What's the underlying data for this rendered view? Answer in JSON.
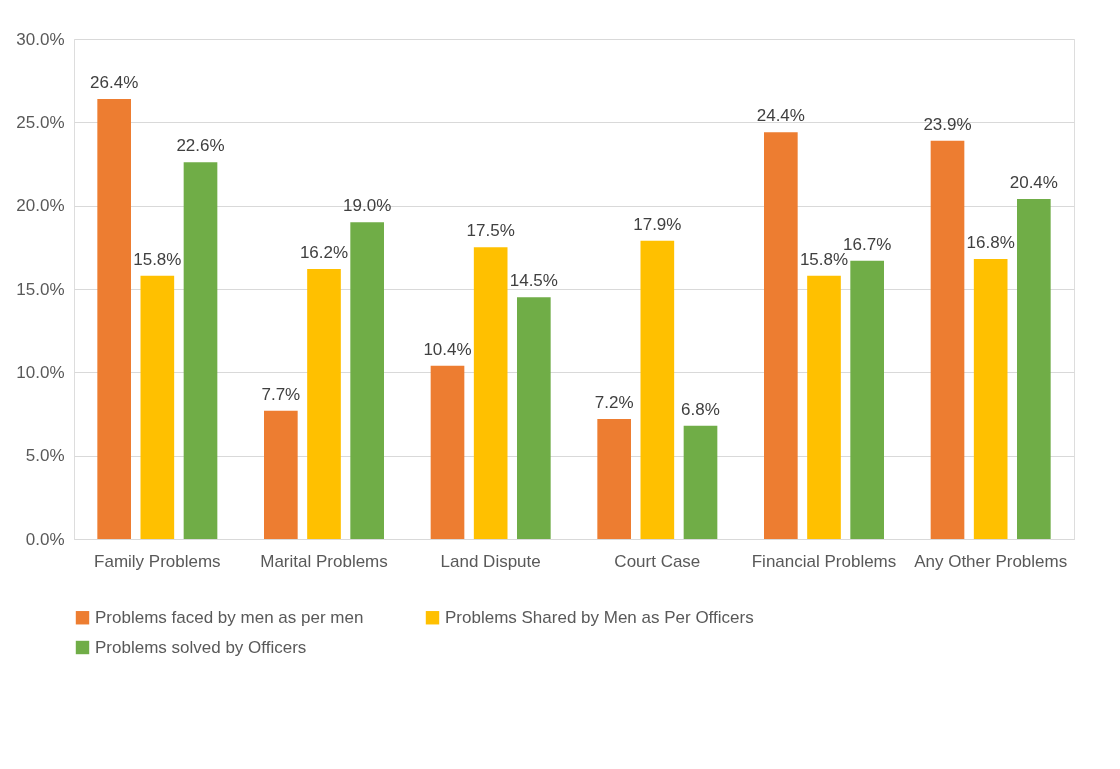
{
  "chart_data": {
    "type": "bar",
    "categories": [
      "Family Problems",
      "Marital Problems",
      "Land Dispute",
      "Court Case",
      "Financial Problems",
      "Any Other Problems"
    ],
    "series": [
      {
        "name": "Problems faced by men as per men",
        "color": "#ed7d31",
        "values": [
          26.4,
          7.7,
          10.4,
          7.2,
          24.4,
          23.9
        ],
        "value_labels": [
          "26.4%",
          "7.7%",
          "10.4%",
          "7.2%",
          "24.4%",
          "23.9%"
        ]
      },
      {
        "name": "Problems Shared by Men as Per Officers",
        "color": "#ffc000",
        "values": [
          15.8,
          16.2,
          17.5,
          17.9,
          15.8,
          16.8
        ],
        "value_labels": [
          "15.8%",
          "16.2%",
          "17.5%",
          "17.9%",
          "15.8%",
          "16.8%"
        ]
      },
      {
        "name": "Problems solved by Officers",
        "color": "#70ad47",
        "values": [
          22.6,
          19.0,
          14.5,
          6.8,
          16.7,
          20.4
        ],
        "value_labels": [
          "22.6%",
          "19.0%",
          "14.5%",
          "6.8%",
          "16.7%",
          "20.4%"
        ]
      }
    ],
    "ylim": [
      0,
      30
    ],
    "yticks": [
      {
        "value": 0,
        "label": "0.0%"
      },
      {
        "value": 5,
        "label": "5.0%"
      },
      {
        "value": 10,
        "label": "10.0%"
      },
      {
        "value": 15,
        "label": "15.0%"
      },
      {
        "value": 20,
        "label": "20.0%"
      },
      {
        "value": 25,
        "label": "25.0%"
      },
      {
        "value": 30,
        "label": "30.0%"
      }
    ],
    "grid": "y",
    "legend": "bottom"
  }
}
